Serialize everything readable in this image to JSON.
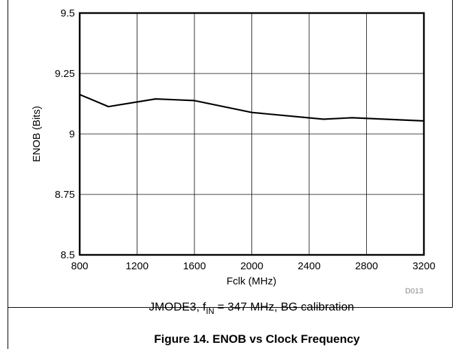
{
  "chart_data": {
    "type": "line",
    "xlabel": "Fclk (MHz)",
    "ylabel": "ENOB (Bits)",
    "xlim": [
      800,
      3200
    ],
    "ylim": [
      8.5,
      9.5
    ],
    "x_ticks": [
      "800",
      "1200",
      "1600",
      "2000",
      "2400",
      "2800",
      "3200"
    ],
    "y_ticks": [
      "9.5",
      "9.25",
      "9",
      "8.75",
      "8.5"
    ],
    "grid": true,
    "series": [
      {
        "x": [
          800,
          1000,
          1330,
          1600,
          2000,
          2500,
          2700,
          3200
        ],
        "y": [
          9.163,
          9.113,
          9.145,
          9.138,
          9.089,
          9.061,
          9.067,
          9.054
        ]
      }
    ],
    "line_color": "#000000",
    "condition": {
      "prefix": "JMODE3, f",
      "subscript": "IN",
      "suffix": " = 347 MHz, BG calibration"
    },
    "figure_code": "D013",
    "caption": "Figure 14. ENOB vs Clock Frequency"
  }
}
